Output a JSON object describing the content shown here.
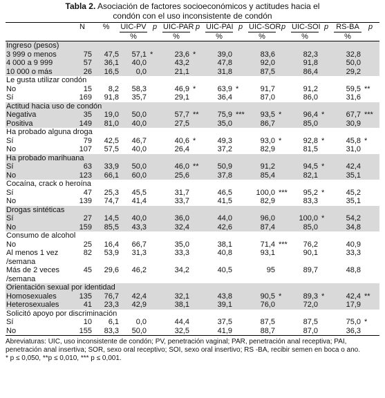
{
  "title": {
    "label": "Tabla 2.",
    "text": "Asociación de factores socioeconómicos y actitudes hacia el condón con el uso inconsistente de condón"
  },
  "table": {
    "header": [
      "N",
      "%",
      "UIC-PV",
      "p",
      "UIC-PAR",
      "p",
      "UIC-PAI",
      "p",
      "UIC-SOR",
      "p",
      "UIC-SOI",
      "p",
      "RS-BA",
      "p"
    ],
    "subheader": "%",
    "sections": [
      {
        "title": "Ingreso (pesos)",
        "shaded": true,
        "rows": [
          {
            "label": "3 999 o menos",
            "cells": [
              "75",
              "47,5",
              "57,1",
              "*",
              "23,6",
              "*",
              "39,0",
              null,
              "83,6",
              null,
              "82,3",
              null,
              "32,8",
              null
            ]
          },
          {
            "label": "4 000 a 9 999",
            "cells": [
              "57",
              "36,1",
              "40,0",
              null,
              "43,2",
              null,
              "47,8",
              null,
              "92,0",
              null,
              "91,8",
              null,
              "50,0",
              null
            ]
          },
          {
            "label": "10 000 o más",
            "cells": [
              "26",
              "16,5",
              "0,0",
              null,
              "21,1",
              null,
              "31,8",
              null,
              "87,5",
              null,
              "86,4",
              null,
              "29,2",
              null
            ]
          }
        ]
      },
      {
        "title": "Le gusta utilizar condón",
        "shaded": false,
        "rows": [
          {
            "label": "No",
            "cells": [
              "15",
              "8,2",
              "58,3",
              null,
              "46,9",
              "*",
              "63,9",
              "*",
              "91,7",
              null,
              "91,2",
              null,
              "59,5",
              "**"
            ]
          },
          {
            "label": "Sí",
            "cells": [
              "169",
              "91,8",
              "35,7",
              null,
              "29,1",
              null,
              "36,4",
              null,
              "87,0",
              null,
              "86,0",
              null,
              "31,6",
              null
            ]
          }
        ]
      },
      {
        "title": "Actitud hacia uso de condón",
        "shaded": true,
        "rows": [
          {
            "label": "Negativa",
            "cells": [
              "35",
              "19,0",
              "50,0",
              null,
              "57,7",
              "**",
              "75,9",
              "***",
              "93,5",
              "*",
              "96,4",
              "*",
              "67,7",
              "***"
            ]
          },
          {
            "label": "Positiva",
            "cells": [
              "149",
              "81,0",
              "40,0",
              null,
              "27,5",
              null,
              "35,0",
              null,
              "86,7",
              null,
              "85,0",
              null,
              "30,9",
              null
            ]
          }
        ]
      },
      {
        "title": "Ha probado alguna droga",
        "shaded": false,
        "rows": [
          {
            "label": "Sí",
            "cells": [
              "79",
              "42,5",
              "46,7",
              null,
              "40,6",
              "*",
              "49,3",
              null,
              "93,0",
              "*",
              "92,8",
              "*",
              "45,8",
              "*"
            ]
          },
          {
            "label": "No",
            "cells": [
              "107",
              "57,5",
              "40,0",
              null,
              "26,4",
              null,
              "37,2",
              null,
              "82,9",
              null,
              "81,5",
              null,
              "31,0",
              null
            ]
          }
        ]
      },
      {
        "title": "Ha probado marihuana",
        "shaded": true,
        "rows": [
          {
            "label": "Sí",
            "cells": [
              "63",
              "33,9",
              "50,0",
              null,
              "46,0",
              "**",
              "50,9",
              null,
              "91,2",
              null,
              "94,5",
              "*",
              "42,4",
              null
            ]
          },
          {
            "label": "No",
            "cells": [
              "123",
              "66,1",
              "60,0",
              null,
              "25,6",
              null,
              "37,8",
              null,
              "85,4",
              null,
              "82,1",
              null,
              "35,1",
              null
            ]
          }
        ]
      },
      {
        "title": "Cocaína, crack o heroína",
        "shaded": false,
        "rows": [
          {
            "label": "Sí",
            "cells": [
              "47",
              "25,3",
              "45,5",
              null,
              "31,7",
              null,
              "46,5",
              null,
              "100,0",
              "***",
              "95,2",
              "*",
              "45,2",
              null
            ]
          },
          {
            "label": "No",
            "cells": [
              "139",
              "74,7",
              "41,4",
              null,
              "33,7",
              null,
              "41,5",
              null,
              "82,9",
              null,
              "83,3",
              null,
              "35,1",
              null
            ]
          }
        ]
      },
      {
        "title": "Drogas sintéticas",
        "shaded": true,
        "rows": [
          {
            "label": "Sí",
            "cells": [
              "27",
              "14,5",
              "40,0",
              null,
              "36,0",
              null,
              "44,0",
              null,
              "96,0",
              null,
              "100,0",
              "*",
              "54,2",
              null
            ]
          },
          {
            "label": "No",
            "cells": [
              "159",
              "85,5",
              "43,3",
              null,
              "32,4",
              null,
              "42,6",
              null,
              "87,4",
              null,
              "85,0",
              null,
              "34,8",
              null
            ]
          }
        ]
      },
      {
        "title": "Consumo de alcohol",
        "shaded": false,
        "rows": [
          {
            "label": "No",
            "cells": [
              "25",
              "16,4",
              "66,7",
              null,
              "35,0",
              null,
              "38,1",
              null,
              "71,4",
              "***",
              "76,2",
              null,
              "40,9",
              null
            ]
          },
          {
            "label": "Al menos 1 vez /semana",
            "cells": [
              "82",
              "53,9",
              "31,3",
              null,
              "33,3",
              null,
              "40,8",
              null,
              "93,1",
              null,
              "90,1",
              null,
              "33,3",
              null
            ]
          },
          {
            "label": "Más de 2 veces /semana",
            "cells": [
              "45",
              "29,6",
              "46,2",
              null,
              "34,2",
              null,
              "40,5",
              null,
              "95",
              null,
              "89,7",
              null,
              "48,8",
              null
            ]
          }
        ]
      },
      {
        "title": "Orientación sexual por identidad",
        "shaded": true,
        "rows": [
          {
            "label": "Homosexuales",
            "cells": [
              "135",
              "76,7",
              "42,4",
              null,
              "32,1",
              null,
              "43,8",
              null,
              "90,5",
              "*",
              "89,3",
              "*",
              "42,4",
              "**"
            ]
          },
          {
            "label": "Heterosexuales",
            "cells": [
              "41",
              "23,3",
              "42,9",
              null,
              "38,1",
              null,
              "39,1",
              null,
              "76,0",
              null,
              "72,0",
              null,
              "17,9",
              null
            ]
          }
        ]
      },
      {
        "title": "Solicitó apoyo por discriminación",
        "shaded": false,
        "rows": [
          {
            "label": "Sí",
            "cells": [
              "10",
              "6,1",
              "0,0",
              null,
              "44,4",
              null,
              "37,5",
              null,
              "87,5",
              null,
              "87,5",
              null,
              "75,0",
              "*"
            ]
          },
          {
            "label": "No",
            "cells": [
              "155",
              "83,3",
              "50,0",
              null,
              "32,5",
              null,
              "41,9",
              null,
              "88,7",
              null,
              "87,0",
              null,
              "36,3",
              null
            ]
          }
        ]
      }
    ]
  },
  "footnotes": [
    "Abreviaturas: UIC, uso inconsistente de condón; PV, penetración vaginal; PAR, penetración anal receptiva; PAI, penetración anal insertiva; SOR, sexo oral receptivo; SOI, sexo oral insertivo; RS -BA, recibir semen en boca o ano.",
    "* p ≤ 0,050, **p ≤ 0,010, *** p ≤ 0,001."
  ]
}
